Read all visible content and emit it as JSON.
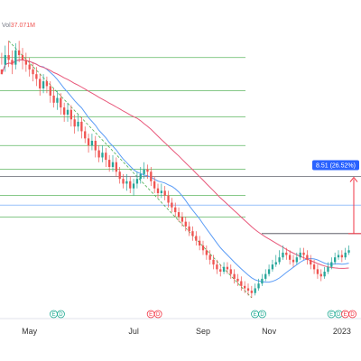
{
  "header": {
    "volume_label": "Vol",
    "volume_value": "37.071M"
  },
  "chart_data": {
    "type": "candlestick",
    "x_tick_labels": [
      "May",
      "Jul",
      "Sep",
      "Nov",
      "2023"
    ],
    "price_label": "8.51 (26.52%)",
    "earnings_markers": [
      {
        "label": "E",
        "sub": "D",
        "color": "#22ab94"
      },
      {
        "label": "E",
        "sub": "D",
        "color": "#f23645"
      },
      {
        "label": "E",
        "sub": "D",
        "color": "#22ab94"
      },
      {
        "label": "E",
        "sub": "D",
        "color": "#22ab94"
      },
      {
        "label": "E",
        "sub": "D",
        "color": "#f23645"
      }
    ],
    "colors": {
      "up": "#26a69a",
      "down": "#ef5350",
      "ma_fast": "#5b9cf6",
      "ma_slow": "#e8577a",
      "level_green": "#4caf50",
      "level_dark": "#434651",
      "level_blue": "#5b9cf6",
      "measure": "#f23645",
      "label_bg": "#2962ff"
    },
    "candles": [
      [
        126,
        124,
        133,
        128
      ],
      [
        128,
        132,
        136,
        125
      ],
      [
        132,
        130,
        138,
        127
      ],
      [
        130,
        128,
        134,
        124
      ],
      [
        128,
        134,
        137,
        126
      ],
      [
        134,
        132,
        138,
        129
      ],
      [
        132,
        130,
        135,
        126
      ],
      [
        130,
        128,
        133,
        125
      ],
      [
        128,
        126,
        131,
        123
      ],
      [
        126,
        124,
        129,
        121
      ],
      [
        124,
        122,
        127,
        119
      ],
      [
        122,
        118,
        124,
        115
      ],
      [
        118,
        121,
        124,
        116
      ],
      [
        121,
        119,
        123,
        116
      ],
      [
        119,
        115,
        121,
        112
      ],
      [
        115,
        112,
        118,
        110
      ],
      [
        112,
        114,
        117,
        109
      ],
      [
        114,
        110,
        116,
        107
      ],
      [
        110,
        107,
        112,
        104
      ],
      [
        107,
        109,
        112,
        104
      ],
      [
        109,
        105,
        111,
        102
      ],
      [
        105,
        102,
        107,
        99
      ],
      [
        102,
        104,
        107,
        100
      ],
      [
        104,
        100,
        106,
        97
      ],
      [
        100,
        97,
        102,
        95
      ],
      [
        97,
        94,
        99,
        91
      ],
      [
        94,
        96,
        99,
        92
      ],
      [
        96,
        92,
        98,
        89
      ],
      [
        92,
        89,
        94,
        87
      ],
      [
        89,
        91,
        94,
        87
      ],
      [
        91,
        88,
        93,
        85
      ],
      [
        88,
        85,
        90,
        83
      ],
      [
        85,
        87,
        90,
        83
      ],
      [
        87,
        83,
        89,
        81
      ],
      [
        83,
        80,
        85,
        78
      ],
      [
        80,
        78,
        82,
        76
      ],
      [
        78,
        79,
        82,
        75
      ],
      [
        79,
        76,
        81,
        74
      ],
      [
        76,
        78,
        80,
        73
      ],
      [
        78,
        80,
        83,
        76
      ],
      [
        80,
        82,
        85,
        78
      ],
      [
        82,
        84,
        87,
        80
      ],
      [
        84,
        83,
        86,
        80
      ],
      [
        83,
        79,
        85,
        77
      ],
      [
        79,
        76,
        81,
        74
      ],
      [
        76,
        74,
        78,
        72
      ],
      [
        74,
        75,
        78,
        72
      ],
      [
        75,
        73,
        77,
        71
      ],
      [
        73,
        70,
        75,
        68
      ],
      [
        70,
        68,
        72,
        66
      ],
      [
        68,
        66,
        70,
        64
      ],
      [
        66,
        64,
        68,
        62
      ],
      [
        64,
        62,
        66,
        60
      ],
      [
        62,
        60,
        64,
        58
      ],
      [
        60,
        58,
        62,
        56
      ],
      [
        58,
        56,
        60,
        54
      ],
      [
        56,
        54,
        58,
        52
      ],
      [
        54,
        52,
        56,
        50
      ],
      [
        52,
        50,
        54,
        48
      ],
      [
        50,
        48,
        52,
        46
      ],
      [
        48,
        46,
        50,
        44
      ],
      [
        46,
        44,
        48,
        42
      ],
      [
        44,
        42,
        46,
        40
      ],
      [
        42,
        41,
        44,
        39
      ],
      [
        41,
        43,
        45,
        40
      ],
      [
        43,
        42,
        45,
        40
      ],
      [
        42,
        40,
        44,
        38
      ],
      [
        40,
        38,
        42,
        36
      ],
      [
        38,
        37,
        40,
        35
      ],
      [
        37,
        35,
        39,
        33
      ],
      [
        35,
        34,
        37,
        32
      ],
      [
        34,
        33,
        36,
        31
      ],
      [
        33,
        32,
        35,
        30
      ],
      [
        32,
        34,
        36,
        31
      ],
      [
        34,
        36,
        38,
        33
      ],
      [
        36,
        38,
        40,
        35
      ],
      [
        38,
        40,
        42,
        37
      ],
      [
        40,
        42,
        44,
        39
      ],
      [
        42,
        44,
        46,
        41
      ],
      [
        44,
        45,
        48,
        43
      ],
      [
        45,
        47,
        50,
        44
      ],
      [
        47,
        49,
        52,
        46
      ],
      [
        49,
        48,
        51,
        46
      ],
      [
        48,
        46,
        50,
        44
      ],
      [
        46,
        45,
        48,
        43
      ],
      [
        45,
        47,
        49,
        44
      ],
      [
        47,
        49,
        51,
        46
      ],
      [
        49,
        48,
        51,
        46
      ],
      [
        48,
        46,
        50,
        44
      ],
      [
        46,
        44,
        48,
        42
      ],
      [
        44,
        42,
        46,
        40
      ],
      [
        42,
        40,
        44,
        38
      ],
      [
        40,
        39,
        42,
        37
      ],
      [
        39,
        41,
        43,
        38
      ],
      [
        41,
        43,
        45,
        40
      ],
      [
        43,
        45,
        47,
        42
      ],
      [
        45,
        47,
        49,
        44
      ],
      [
        47,
        48,
        50,
        46
      ],
      [
        48,
        47,
        50,
        45
      ],
      [
        47,
        49,
        51,
        46
      ],
      [
        49,
        50,
        52,
        48
      ]
    ],
    "levels": [
      131,
      117,
      106,
      94,
      84,
      73,
      64
    ],
    "blue_level": 69,
    "dark_level": 57,
    "projection_target": 81,
    "ylim": [
      30,
      140
    ]
  }
}
